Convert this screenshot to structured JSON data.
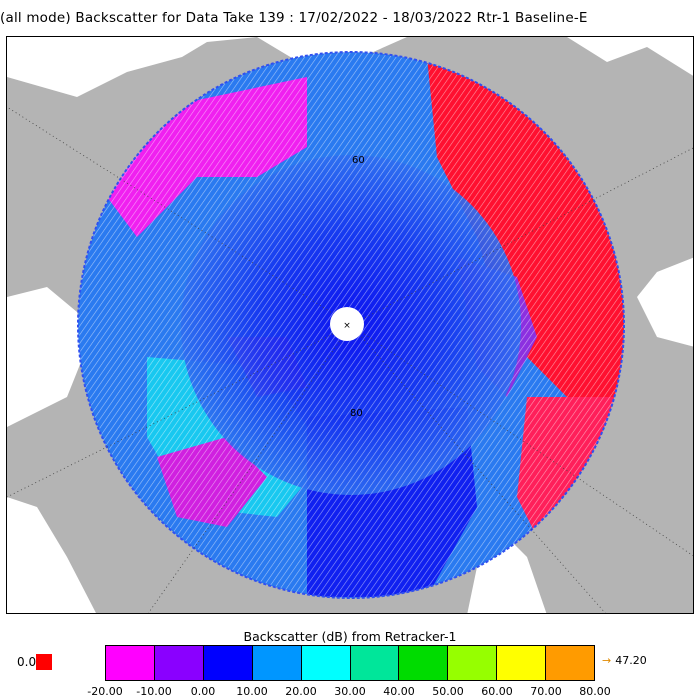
{
  "header": {
    "title": "(all mode) Backscatter for Data Take 139 : 17/02/2022 - 18/03/2022 Rtr-1 Baseline-E"
  },
  "map": {
    "lat_labels": [
      "80",
      "60"
    ],
    "colors": {
      "land": "#ffffff",
      "ocean": "#b4b4b4",
      "pole_hole": "#ffffff"
    }
  },
  "legend": {
    "title": "Backscatter (dB) from Retracker-1",
    "nodata_label": "0.0",
    "nodata_color": "#ff0000",
    "max_arrow": "→",
    "max_value": "47.20",
    "bins": [
      {
        "color": "#ff00ff"
      },
      {
        "color": "#8a00ff"
      },
      {
        "color": "#0000ff"
      },
      {
        "color": "#0096ff"
      },
      {
        "color": "#00ffff"
      },
      {
        "color": "#00e69a"
      },
      {
        "color": "#00dc00"
      },
      {
        "color": "#96ff00"
      },
      {
        "color": "#ffff00"
      },
      {
        "color": "#ff9b00"
      }
    ],
    "ticks": [
      "-20.00",
      "-10.00",
      "0.00",
      "10.00",
      "20.00",
      "30.00",
      "40.00",
      "50.00",
      "60.00",
      "70.00",
      "80.00"
    ]
  }
}
